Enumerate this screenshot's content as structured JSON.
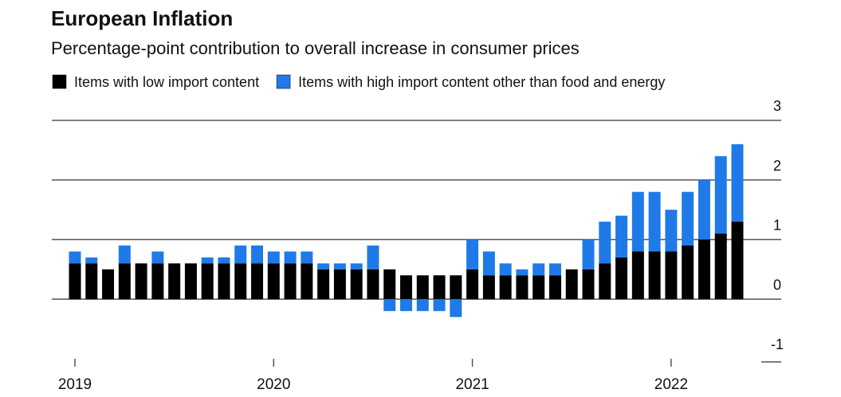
{
  "chart_data": {
    "type": "stacked_bar",
    "title": "European Inflation",
    "subtitle": "Percentage-point contribution to overall increase in consumer prices",
    "categories": [
      "2019",
      null,
      null,
      null,
      null,
      null,
      null,
      null,
      null,
      null,
      null,
      null,
      "2020",
      null,
      null,
      null,
      null,
      null,
      null,
      null,
      null,
      null,
      null,
      null,
      "2021",
      null,
      null,
      null,
      null,
      null,
      null,
      null,
      null,
      null,
      null,
      null,
      "2022",
      null,
      null,
      null,
      null
    ],
    "series": [
      {
        "name": "Items with low import content",
        "color": "#000000",
        "values": [
          0.6,
          0.6,
          0.5,
          0.6,
          0.6,
          0.6,
          0.6,
          0.6,
          0.6,
          0.6,
          0.6,
          0.6,
          0.6,
          0.6,
          0.6,
          0.5,
          0.5,
          0.5,
          0.5,
          0.5,
          0.4,
          0.4,
          0.4,
          0.4,
          0.5,
          0.4,
          0.4,
          0.4,
          0.4,
          0.4,
          0.5,
          0.5,
          0.6,
          0.7,
          0.8,
          0.8,
          0.8,
          0.9,
          1.0,
          1.1,
          1.3
        ]
      },
      {
        "name": "Items with high import content other than food and energy",
        "color": "#1f7ae8",
        "values": [
          0.2,
          0.1,
          0,
          0.3,
          0,
          0.2,
          0,
          0,
          0.1,
          0.1,
          0.3,
          0.3,
          0.2,
          0.2,
          0.2,
          0.1,
          0.1,
          0.1,
          0.4,
          -0.2,
          -0.2,
          -0.2,
          -0.2,
          -0.3,
          0.5,
          0.4,
          0.2,
          0.1,
          0.2,
          0.2,
          0,
          0.5,
          0.7,
          0.7,
          1.0,
          1.0,
          0.7,
          0.9,
          1.0,
          1.3,
          1.3
        ]
      }
    ],
    "ylim": [
      -1,
      3
    ],
    "yticks": [
      -1,
      0,
      1,
      2,
      3
    ],
    "grid": true,
    "legend": "top-left"
  }
}
